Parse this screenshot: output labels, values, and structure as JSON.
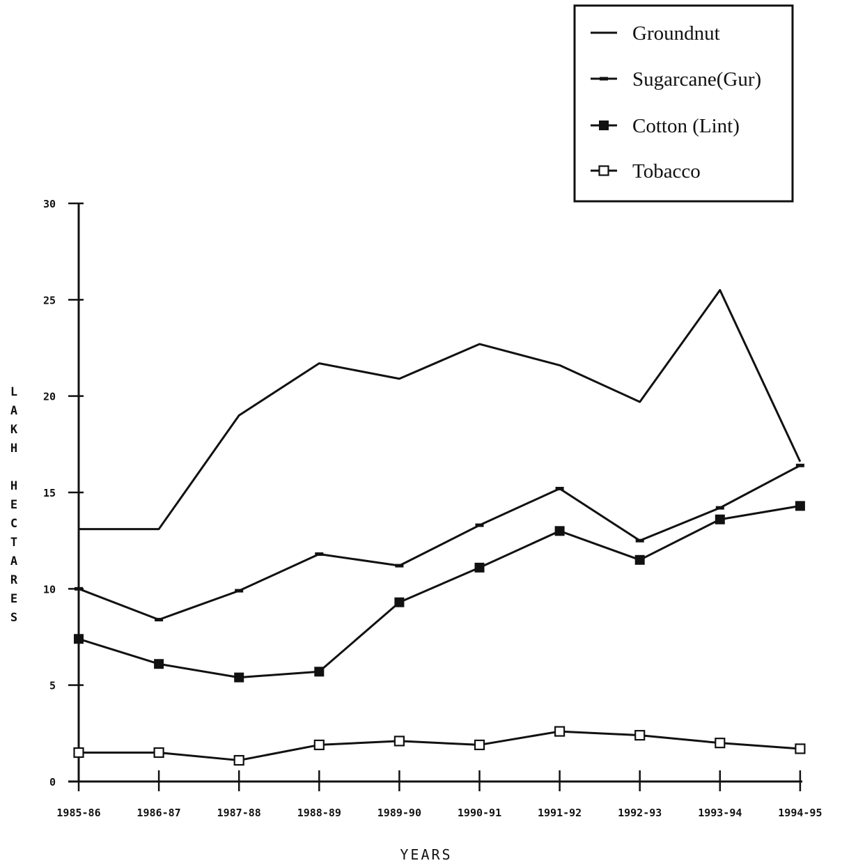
{
  "chart_data": {
    "type": "line",
    "categories": [
      "1985-86",
      "1986-87",
      "1987-88",
      "1988-89",
      "1989-90",
      "1990-91",
      "1991-92",
      "1992-93",
      "1993-94",
      "1994-95"
    ],
    "series": [
      {
        "name": "Groundnut",
        "marker": "none",
        "values": [
          13.1,
          13.1,
          19.0,
          21.7,
          20.9,
          22.7,
          21.6,
          19.7,
          25.5,
          16.6
        ]
      },
      {
        "name": "Sugarcane(Gur)",
        "marker": "dash",
        "values": [
          10.0,
          8.4,
          9.9,
          11.8,
          11.2,
          13.3,
          15.2,
          12.5,
          14.2,
          16.4
        ]
      },
      {
        "name": "Cotton (Lint)",
        "marker": "filled-square",
        "values": [
          7.4,
          6.1,
          5.4,
          5.7,
          9.3,
          11.1,
          13.0,
          11.5,
          13.6,
          14.3
        ]
      },
      {
        "name": "Tobacco",
        "marker": "open-square",
        "values": [
          1.5,
          1.5,
          1.1,
          1.9,
          2.1,
          1.9,
          2.6,
          2.4,
          2.0,
          1.7
        ]
      }
    ],
    "yticks": [
      "0",
      "5",
      "10",
      "15",
      "20",
      "25",
      "30"
    ],
    "ylim": [
      0,
      30
    ],
    "ylabel": "LAKH HECTARES",
    "xlabel": "YEARS",
    "legend_position": "top-right",
    "grid": false,
    "line_color": "#111111"
  }
}
